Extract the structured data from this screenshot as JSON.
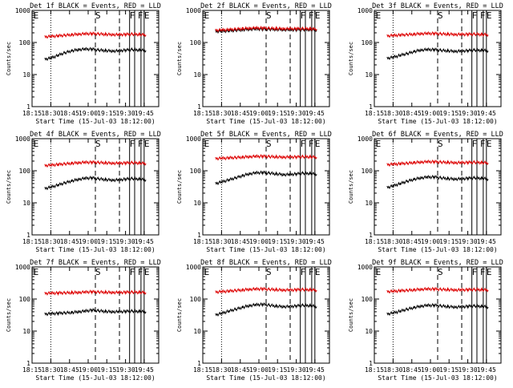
{
  "chart_data": [
    {
      "type": "line",
      "title": "Det 1f BLACK = Events, RED = LLD",
      "xlabel": "Start Time (15-Jul-03 18:12:00)",
      "ylabel": "Counts/sec",
      "yscale": "log",
      "ylim": [
        1,
        1000
      ],
      "y_ticks": [
        "1",
        "10",
        "100",
        "1000"
      ],
      "x_ticks": [
        "18:15",
        "18:30",
        "18:45",
        "19:00",
        "19:15",
        "19:30",
        "19:45"
      ],
      "markers": [
        "E",
        "S",
        "F",
        "F",
        "E"
      ],
      "series": [
        {
          "name": "Events",
          "color": "#000000",
          "levels": [
            30,
            33,
            40,
            48,
            55,
            60,
            62,
            62,
            58,
            56,
            54,
            55,
            58,
            60,
            58,
            56
          ]
        },
        {
          "name": "LLD",
          "color": "#dd0000",
          "levels": [
            150,
            155,
            160,
            168,
            175,
            182,
            186,
            188,
            185,
            180,
            176,
            175,
            178,
            182,
            178,
            172
          ]
        }
      ]
    },
    {
      "type": "line",
      "title": "Det 2f BLACK = Events, RED = LLD",
      "xlabel": "Start Time (15-Jul-03 18:12:00)",
      "ylabel": "Counts/sec",
      "yscale": "log",
      "ylim": [
        1,
        1000
      ],
      "y_ticks": [
        "1",
        "10",
        "100",
        "1000"
      ],
      "x_ticks": [
        "18:15",
        "18:30",
        "18:45",
        "19:00",
        "19:15",
        "19:30",
        "19:45"
      ],
      "markers": [
        "E",
        "S",
        "F",
        "F",
        "E"
      ],
      "series": [
        {
          "name": "Events",
          "color": "#000000",
          "levels": [
            220,
            225,
            230,
            240,
            250,
            258,
            262,
            262,
            258,
            255,
            250,
            248,
            250,
            252,
            250,
            245
          ]
        },
        {
          "name": "LLD",
          "color": "#dd0000",
          "levels": [
            240,
            245,
            250,
            260,
            270,
            278,
            282,
            282,
            276,
            272,
            268,
            266,
            268,
            270,
            268,
            262
          ]
        }
      ]
    },
    {
      "type": "line",
      "title": "Det 3f BLACK = Events, RED = LLD",
      "xlabel": "Start Time (15-Jul-03 18:12:00)",
      "ylabel": "Counts/sec",
      "yscale": "log",
      "ylim": [
        1,
        1000
      ],
      "y_ticks": [
        "1",
        "10",
        "100",
        "1000"
      ],
      "x_ticks": [
        "18:15",
        "18:30",
        "18:45",
        "19:00",
        "19:15",
        "19:30",
        "19:45"
      ],
      "markers": [
        "E",
        "S",
        "F",
        "F",
        "E"
      ],
      "series": [
        {
          "name": "Events",
          "color": "#000000",
          "levels": [
            32,
            35,
            40,
            45,
            52,
            58,
            60,
            60,
            57,
            55,
            53,
            54,
            56,
            58,
            57,
            55
          ]
        },
        {
          "name": "LLD",
          "color": "#dd0000",
          "levels": [
            160,
            165,
            170,
            176,
            182,
            188,
            190,
            190,
            186,
            182,
            178,
            178,
            180,
            182,
            178,
            174
          ]
        }
      ]
    },
    {
      "type": "line",
      "title": "Det 4f BLACK = Events, RED = LLD",
      "xlabel": "Start Time (15-Jul-03 18:12:00)",
      "ylabel": "Counts/sec",
      "yscale": "log",
      "ylim": [
        1,
        1000
      ],
      "y_ticks": [
        "1",
        "10",
        "100",
        "1000"
      ],
      "x_ticks": [
        "18:15",
        "18:30",
        "18:45",
        "19:00",
        "19:15",
        "19:30",
        "19:45"
      ],
      "markers": [
        "E",
        "S",
        "F",
        "F",
        "E"
      ],
      "series": [
        {
          "name": "Events",
          "color": "#000000",
          "levels": [
            28,
            31,
            36,
            42,
            48,
            54,
            58,
            60,
            56,
            53,
            51,
            52,
            55,
            57,
            55,
            52
          ]
        },
        {
          "name": "LLD",
          "color": "#dd0000",
          "levels": [
            145,
            150,
            156,
            164,
            172,
            178,
            182,
            184,
            180,
            176,
            172,
            172,
            175,
            178,
            174,
            168
          ]
        }
      ]
    },
    {
      "type": "line",
      "title": "Det 5f BLACK = Events, RED = LLD",
      "xlabel": "Start Time (15-Jul-03 18:12:00)",
      "ylabel": "Counts/sec",
      "yscale": "log",
      "ylim": [
        1,
        1000
      ],
      "y_ticks": [
        "1",
        "10",
        "100",
        "1000"
      ],
      "x_ticks": [
        "18:15",
        "18:30",
        "18:45",
        "19:00",
        "19:15",
        "19:30",
        "19:45"
      ],
      "markers": [
        "E",
        "S",
        "F",
        "F",
        "E"
      ],
      "series": [
        {
          "name": "Events",
          "color": "#000000",
          "levels": [
            40,
            45,
            52,
            60,
            70,
            80,
            86,
            88,
            84,
            80,
            76,
            76,
            80,
            84,
            82,
            78
          ]
        },
        {
          "name": "LLD",
          "color": "#dd0000",
          "levels": [
            240,
            245,
            250,
            258,
            266,
            274,
            280,
            282,
            276,
            270,
            266,
            266,
            270,
            274,
            270,
            264
          ]
        }
      ]
    },
    {
      "type": "line",
      "title": "Det 6f BLACK = Events, RED = LLD",
      "xlabel": "Start Time (15-Jul-03 18:12:00)",
      "ylabel": "Counts/sec",
      "yscale": "log",
      "ylim": [
        1,
        1000
      ],
      "y_ticks": [
        "1",
        "10",
        "100",
        "1000"
      ],
      "x_ticks": [
        "18:15",
        "18:30",
        "18:45",
        "19:00",
        "19:15",
        "19:30",
        "19:45"
      ],
      "markers": [
        "E",
        "S",
        "F",
        "F",
        "E"
      ],
      "series": [
        {
          "name": "Events",
          "color": "#000000",
          "levels": [
            30,
            34,
            40,
            47,
            54,
            60,
            63,
            64,
            60,
            57,
            55,
            56,
            58,
            60,
            58,
            55
          ]
        },
        {
          "name": "LLD",
          "color": "#dd0000",
          "levels": [
            155,
            160,
            165,
            172,
            180,
            186,
            190,
            190,
            186,
            182,
            178,
            178,
            181,
            184,
            180,
            175
          ]
        }
      ]
    },
    {
      "type": "line",
      "title": "Det 7f BLACK = Events, RED = LLD",
      "xlabel": "Start Time (15-Jul-03 18:12:00)",
      "ylabel": "Counts/sec",
      "yscale": "log",
      "ylim": [
        1,
        1000
      ],
      "y_ticks": [
        "1",
        "10",
        "100",
        "1000"
      ],
      "x_ticks": [
        "18:15",
        "18:30",
        "18:45",
        "19:00",
        "19:15",
        "19:30",
        "19:45"
      ],
      "markers": [
        "E",
        "S",
        "F",
        "F",
        "E"
      ],
      "series": [
        {
          "name": "Events",
          "color": "#000000",
          "levels": [
            34,
            35,
            36,
            37,
            38,
            40,
            42,
            45,
            43,
            41,
            40,
            40,
            41,
            42,
            41,
            40
          ]
        },
        {
          "name": "LLD",
          "color": "#dd0000",
          "levels": [
            150,
            152,
            154,
            156,
            158,
            160,
            164,
            168,
            165,
            162,
            160,
            160,
            162,
            164,
            162,
            158
          ]
        }
      ]
    },
    {
      "type": "line",
      "title": "Det 8f BLACK = Events, RED = LLD",
      "xlabel": "Start Time (15-Jul-03 18:12:00)",
      "ylabel": "Counts/sec",
      "yscale": "log",
      "ylim": [
        1,
        1000
      ],
      "y_ticks": [
        "1",
        "10",
        "100",
        "1000"
      ],
      "x_ticks": [
        "18:15",
        "18:30",
        "18:45",
        "19:00",
        "19:15",
        "19:30",
        "19:45"
      ],
      "markers": [
        "E",
        "S",
        "F",
        "F",
        "E"
      ],
      "series": [
        {
          "name": "Events",
          "color": "#000000",
          "levels": [
            32,
            36,
            42,
            48,
            55,
            62,
            66,
            68,
            64,
            60,
            58,
            58,
            61,
            64,
            62,
            58
          ]
        },
        {
          "name": "LLD",
          "color": "#dd0000",
          "levels": [
            165,
            170,
            176,
            184,
            192,
            200,
            204,
            206,
            200,
            195,
            190,
            190,
            194,
            198,
            194,
            188
          ]
        }
      ]
    },
    {
      "type": "line",
      "title": "Det 9f BLACK = Events, RED = LLD",
      "xlabel": "Start Time (15-Jul-03 18:12:00)",
      "ylabel": "Counts/sec",
      "yscale": "log",
      "ylim": [
        1,
        1000
      ],
      "y_ticks": [
        "1",
        "10",
        "100",
        "1000"
      ],
      "x_ticks": [
        "18:15",
        "18:30",
        "18:45",
        "19:00",
        "19:15",
        "19:30",
        "19:45"
      ],
      "markers": [
        "E",
        "S",
        "F",
        "F",
        "E"
      ],
      "series": [
        {
          "name": "Events",
          "color": "#000000",
          "levels": [
            34,
            37,
            42,
            48,
            54,
            60,
            63,
            64,
            61,
            58,
            56,
            57,
            59,
            61,
            59,
            56
          ]
        },
        {
          "name": "LLD",
          "color": "#dd0000",
          "levels": [
            170,
            174,
            180,
            186,
            194,
            200,
            204,
            204,
            200,
            196,
            192,
            192,
            195,
            198,
            195,
            190
          ]
        }
      ]
    }
  ]
}
